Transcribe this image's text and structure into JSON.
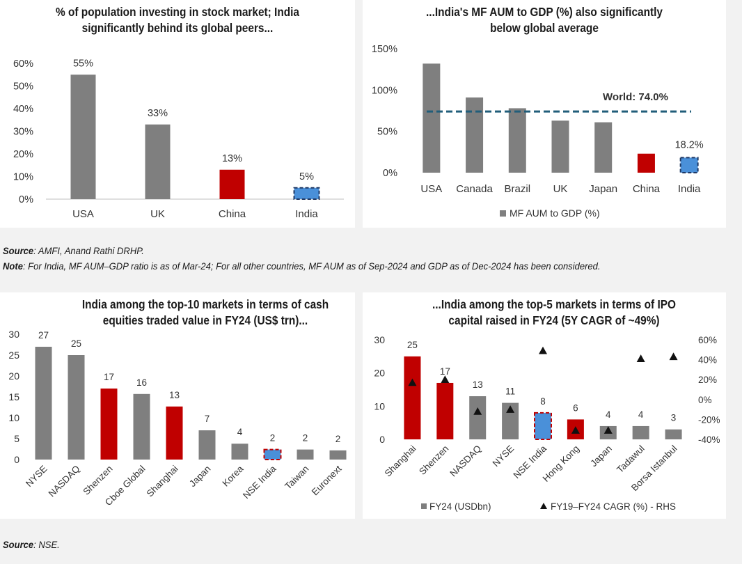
{
  "colors": {
    "gray": "#7f7f7f",
    "red": "#c00000",
    "blue": "#4a90d9",
    "blue_border": "#1f3864",
    "red_border": "#c00000",
    "world_line": "#215e7a",
    "marker": "#111111"
  },
  "notes": {
    "source1_label": "Source",
    "source1_text": ": AMFI, Anand Rathi DRHP.",
    "note_label": "Note",
    "note_text": ": For India, MF AUM–GDP ratio is as of Mar-24; For all other countries, MF AUM as of Sep-2024 and GDP as of Dec-2024 has been considered.",
    "source2_label": "Source",
    "source2_text": ": NSE."
  },
  "chart_data": [
    {
      "id": "c1",
      "type": "bar",
      "title_line1": "% of population investing in stock market; India",
      "title_line2": "significantly behind its global peers...",
      "categories": [
        "USA",
        "UK",
        "China",
        "India"
      ],
      "values": [
        55,
        33,
        13,
        5
      ],
      "data_labels": [
        "55%",
        "33%",
        "13%",
        "5%"
      ],
      "colors": [
        "gray",
        "gray",
        "red",
        "blue"
      ],
      "highlight": "India",
      "ylim": [
        0,
        60
      ],
      "yticks": [
        0,
        10,
        20,
        30,
        40,
        50,
        60
      ],
      "ytick_labels": [
        "0%",
        "10%",
        "20%",
        "30%",
        "40%",
        "50%",
        "60%"
      ],
      "grid": false
    },
    {
      "id": "c2",
      "type": "bar",
      "title_line1": "...India's MF AUM to GDP (%) also significantly",
      "title_line2": "below global average",
      "categories": [
        "USA",
        "Canada",
        "Brazil",
        "UK",
        "Japan",
        "China",
        "India"
      ],
      "values": [
        132,
        91,
        78,
        63,
        61,
        23,
        18.2
      ],
      "india_label": "18.2%",
      "colors": [
        "gray",
        "gray",
        "gray",
        "gray",
        "gray",
        "red",
        "blue"
      ],
      "reference_line": {
        "value": 74.0,
        "label": "World: 74.0%"
      },
      "ylim": [
        0,
        150
      ],
      "yticks": [
        0,
        50,
        100,
        150
      ],
      "ytick_labels": [
        "0%",
        "50%",
        "100%",
        "150%"
      ],
      "legend": [
        "MF AUM to GDP (%)"
      ],
      "legend_position": "bottom",
      "grid": false
    },
    {
      "id": "c3",
      "type": "bar",
      "title_line1": "India among the top-10 markets in terms of cash",
      "title_line2": "equities traded value in FY24 (US$ trn)...",
      "categories": [
        "NYSE",
        "NASDAQ",
        "Shenzen",
        "Cboe Global",
        "Shanghai",
        "Japan",
        "Korea",
        "NSE India",
        "Taiwan",
        "Euronext"
      ],
      "values": [
        27,
        25,
        17,
        15.7,
        12.7,
        7,
        3.8,
        2.4,
        2.4,
        2.2
      ],
      "data_labels": [
        "27",
        "25",
        "17",
        "16",
        "13",
        "7",
        "4",
        "2",
        "2",
        "2"
      ],
      "colors": [
        "gray",
        "gray",
        "red",
        "gray",
        "red",
        "gray",
        "gray",
        "blue",
        "gray",
        "gray"
      ],
      "ylim": [
        0,
        30
      ],
      "yticks": [
        0,
        5,
        10,
        15,
        20,
        25,
        30
      ],
      "ytick_labels": [
        "0",
        "5",
        "10",
        "15",
        "20",
        "25",
        "30"
      ],
      "grid": false
    },
    {
      "id": "c4",
      "type": "bar",
      "title_line1": "...India among the top-5 markets in terms of IPO",
      "title_line2": "capital raised in FY24 (5Y CAGR of ~49%)",
      "categories": [
        "Shanghai",
        "Shenzen",
        "NASDAQ",
        "NYSE",
        "NSE India",
        "Hong Kong",
        "Japan",
        "Tadawul",
        "Borsa Istanbul"
      ],
      "series": [
        {
          "name": "FY24 (USDbn)",
          "axis": "left",
          "values": [
            25,
            17,
            13,
            11,
            8,
            6,
            4,
            4,
            3
          ]
        },
        {
          "name": "FY19–FY24 CAGR (%) - RHS",
          "axis": "right",
          "type": "scatter",
          "marker": "triangle",
          "values": [
            17,
            20,
            -12,
            -10,
            49,
            -31,
            -31,
            41,
            43
          ]
        }
      ],
      "data_labels": [
        "25",
        "17",
        "13",
        "11",
        "8",
        "6",
        "4",
        "4",
        "3"
      ],
      "colors": [
        "red",
        "red",
        "gray",
        "gray",
        "blue",
        "red",
        "gray",
        "gray",
        "gray"
      ],
      "ylim": [
        0,
        30
      ],
      "yticks": [
        0,
        10,
        20,
        30
      ],
      "ytick_labels": [
        "0",
        "10",
        "20",
        "30"
      ],
      "y2lim": [
        -40,
        60
      ],
      "y2ticks": [
        -40,
        -20,
        0,
        20,
        40,
        60
      ],
      "y2tick_labels": [
        "-40%",
        "-20%",
        "0%",
        "20%",
        "40%",
        "60%"
      ],
      "legend": [
        "FY24 (USDbn)",
        "FY19–FY24 CAGR (%) - RHS"
      ],
      "legend_position": "bottom",
      "grid": false
    }
  ]
}
